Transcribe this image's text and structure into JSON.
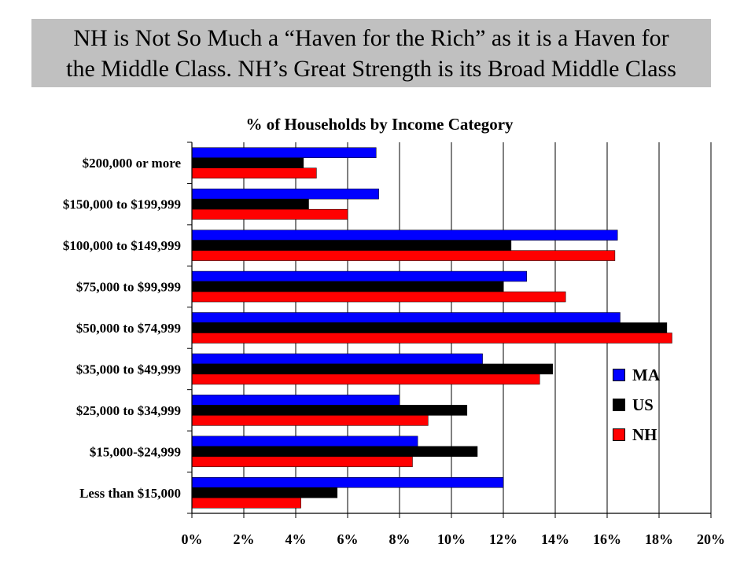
{
  "slide": {
    "title": "NH is Not So Much a “Haven for the Rich” as it is a Haven for\nthe Middle Class.  NH’s Great Strength is its Broad Middle Class"
  },
  "chart_data": {
    "type": "bar",
    "orientation": "horizontal",
    "title": "% of Households by Income Category",
    "categories": [
      "$200,000 or more",
      "$150,000 to $199,999",
      "$100,000 to $149,999",
      "$75,000 to $99,999",
      "$50,000 to $74,999",
      "$35,000 to $49,999",
      "$25,000 to $34,999",
      "$15,000-$24,999",
      "Less than $15,000"
    ],
    "series": [
      {
        "name": "MA",
        "color": "#0000ff",
        "values": [
          7.1,
          7.2,
          16.4,
          12.9,
          16.5,
          11.2,
          8.0,
          8.7,
          12.0
        ]
      },
      {
        "name": "US",
        "color": "#000000",
        "values": [
          4.3,
          4.5,
          12.3,
          12.0,
          18.3,
          13.9,
          10.6,
          11.0,
          5.6
        ]
      },
      {
        "name": "NH",
        "color": "#ff0000",
        "values": [
          4.8,
          6.0,
          16.3,
          14.4,
          18.5,
          13.4,
          9.1,
          8.5,
          4.2
        ]
      }
    ],
    "xlim": [
      0,
      20
    ],
    "xticks": [
      "0%",
      "2%",
      "4%",
      "6%",
      "8%",
      "10%",
      "12%",
      "14%",
      "16%",
      "18%",
      "20%"
    ],
    "grid": true,
    "legend": "right"
  }
}
